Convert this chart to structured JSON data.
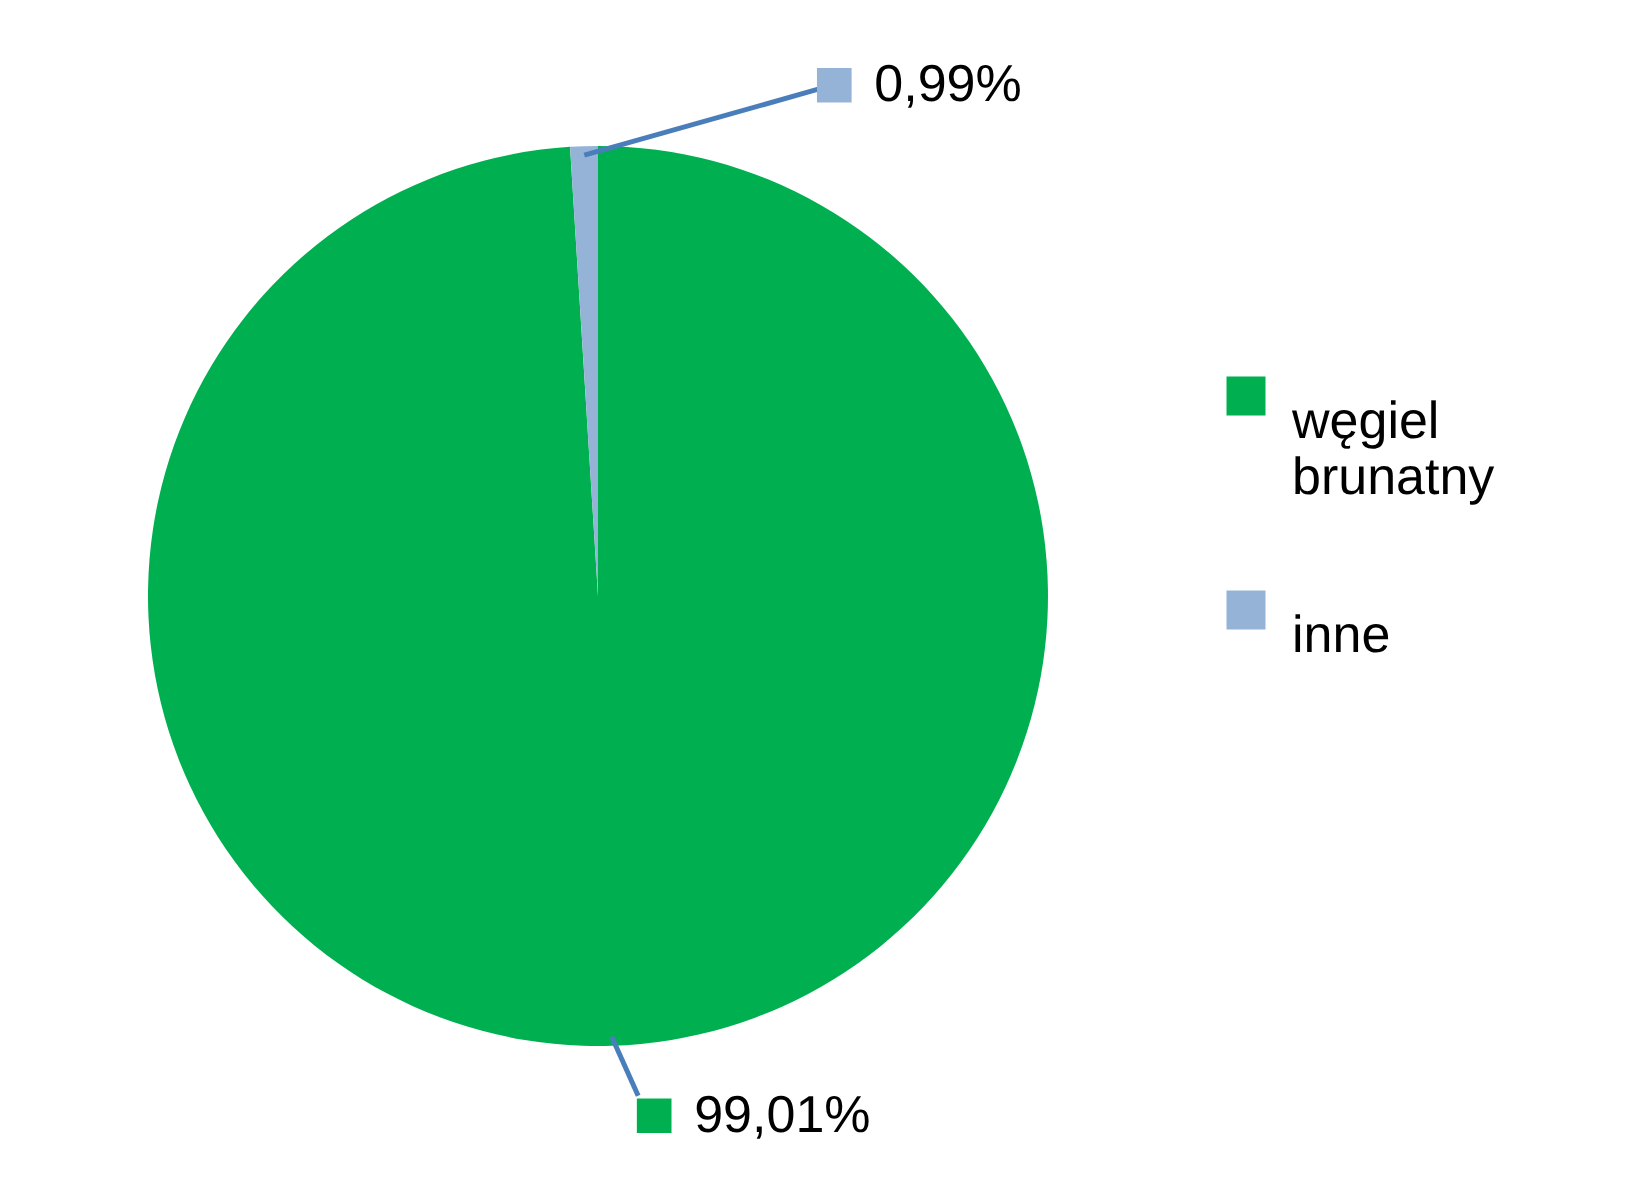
{
  "chart_data": {
    "type": "pie",
    "categories": [
      "węgiel brunatny",
      "inne"
    ],
    "values": [
      99.01,
      0.99
    ],
    "colors": [
      "#00b050",
      "#95b3d7"
    ],
    "value_labels": [
      "99,01%",
      "0,99%"
    ],
    "legend": "right"
  }
}
